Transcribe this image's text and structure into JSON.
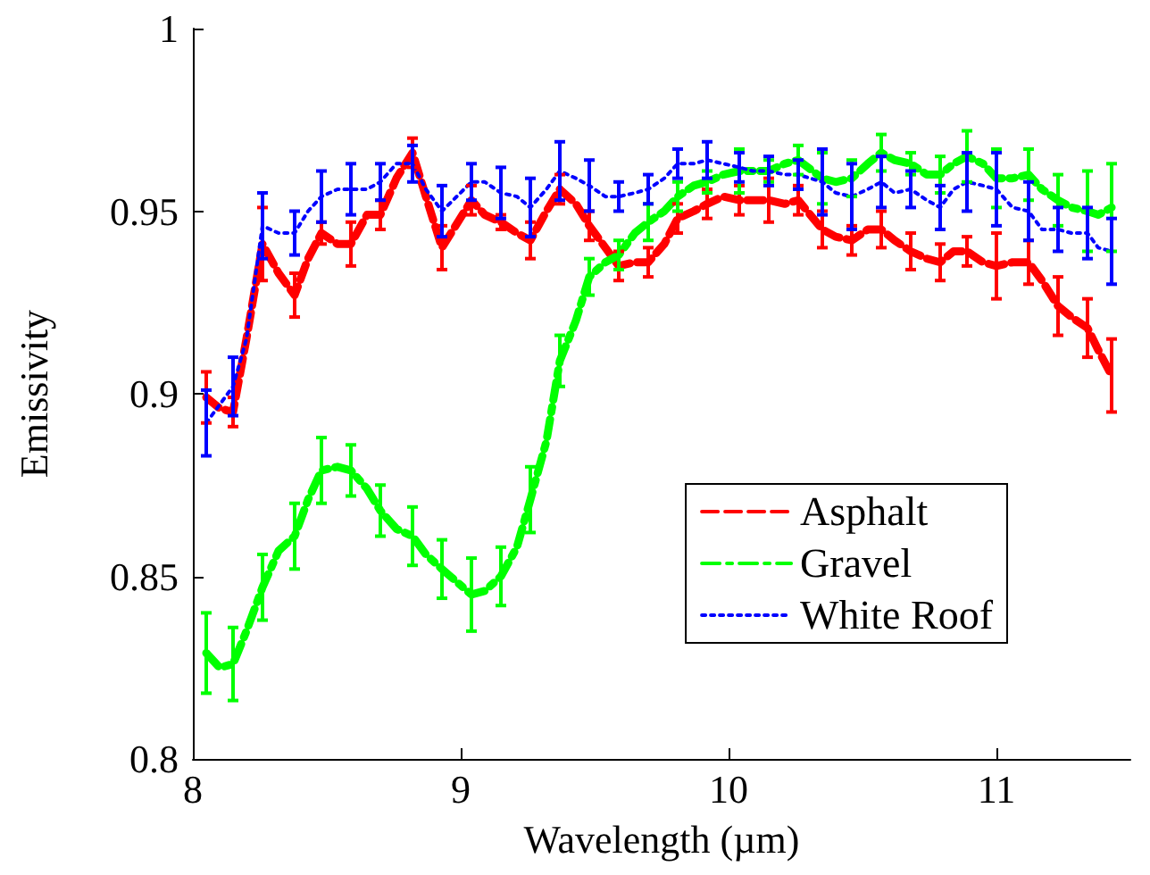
{
  "chart_data": {
    "type": "line",
    "xlabel": "Wavelength (µm)",
    "ylabel": "Emissivity",
    "x": [
      8.05,
      8.1,
      8.15,
      8.2,
      8.26,
      8.32,
      8.38,
      8.43,
      8.48,
      8.54,
      8.59,
      8.65,
      8.7,
      8.76,
      8.82,
      8.87,
      8.93,
      9.04,
      9.09,
      9.15,
      9.21,
      9.26,
      9.32,
      9.37,
      9.43,
      9.48,
      9.54,
      9.59,
      9.65,
      9.7,
      9.76,
      9.81,
      9.87,
      9.92,
      9.98,
      10.04,
      10.09,
      10.15,
      10.21,
      10.26,
      10.35,
      10.4,
      10.46,
      10.52,
      10.57,
      10.62,
      10.68,
      10.74,
      10.79,
      10.84,
      10.89,
      10.95,
      11.0,
      11.06,
      11.12,
      11.17,
      11.23,
      11.28,
      11.34,
      11.38,
      11.43
    ],
    "series": [
      {
        "name": "Asphalt",
        "color": "#ff0000",
        "line_style": "dashed",
        "values": [
          0.899,
          0.896,
          0.895,
          0.915,
          0.941,
          0.933,
          0.927,
          0.937,
          0.944,
          0.941,
          0.941,
          0.949,
          0.949,
          0.959,
          0.966,
          0.954,
          0.94,
          0.953,
          0.949,
          0.947,
          0.944,
          0.942,
          0.95,
          0.956,
          0.952,
          0.946,
          0.94,
          0.935,
          0.936,
          0.936,
          0.941,
          0.948,
          0.95,
          0.952,
          0.954,
          0.953,
          0.953,
          0.953,
          0.952,
          0.953,
          0.945,
          0.943,
          0.942,
          0.945,
          0.945,
          0.942,
          0.939,
          0.937,
          0.936,
          0.939,
          0.939,
          0.936,
          0.935,
          0.936,
          0.936,
          0.931,
          0.924,
          0.921,
          0.918,
          0.912,
          0.905
        ],
        "errors": [
          0.007,
          null,
          0.004,
          null,
          0.01,
          null,
          0.006,
          null,
          0.003,
          null,
          0.006,
          null,
          0.004,
          null,
          0.004,
          null,
          0.006,
          0.004,
          null,
          0.002,
          null,
          0.005,
          null,
          0.004,
          null,
          0.004,
          null,
          0.004,
          null,
          0.004,
          null,
          0.004,
          null,
          0.004,
          null,
          0.004,
          null,
          0.006,
          null,
          0.004,
          0.005,
          null,
          0.004,
          null,
          0.005,
          null,
          0.005,
          null,
          0.005,
          null,
          0.004,
          null,
          0.009,
          null,
          0.006,
          null,
          0.008,
          null,
          0.008,
          null,
          0.01
        ]
      },
      {
        "name": "Gravel",
        "color": "#00ff00",
        "line_style": "dashdot",
        "values": [
          0.829,
          0.825,
          0.826,
          0.835,
          0.847,
          0.857,
          0.861,
          0.871,
          0.879,
          0.88,
          0.879,
          0.874,
          0.868,
          0.863,
          0.861,
          0.856,
          0.852,
          0.845,
          0.846,
          0.85,
          0.858,
          0.871,
          0.887,
          0.909,
          0.92,
          0.932,
          0.936,
          0.938,
          0.944,
          0.947,
          0.95,
          0.954,
          0.957,
          0.958,
          0.96,
          0.961,
          0.961,
          0.961,
          0.963,
          0.964,
          0.959,
          0.958,
          0.959,
          0.963,
          0.966,
          0.964,
          0.963,
          0.96,
          0.96,
          0.963,
          0.965,
          0.963,
          0.959,
          0.959,
          0.96,
          0.956,
          0.953,
          0.951,
          0.95,
          0.949,
          0.951
        ],
        "errors": [
          0.011,
          null,
          0.01,
          null,
          0.009,
          null,
          0.009,
          null,
          0.009,
          null,
          0.007,
          null,
          0.007,
          null,
          0.008,
          null,
          0.008,
          0.01,
          null,
          0.008,
          null,
          0.009,
          null,
          0.007,
          null,
          0.005,
          null,
          0.004,
          null,
          0.005,
          null,
          0.004,
          null,
          0.003,
          null,
          0.006,
          null,
          0.003,
          null,
          0.004,
          0.007,
          null,
          0.005,
          null,
          0.005,
          null,
          0.003,
          null,
          0.005,
          null,
          0.007,
          null,
          0.008,
          null,
          0.007,
          null,
          0.007,
          null,
          0.011,
          null,
          0.012
        ]
      },
      {
        "name": "White Roof",
        "color": "#0000ff",
        "line_style": "dotted",
        "values": [
          0.892,
          0.897,
          0.902,
          0.915,
          0.946,
          0.944,
          0.944,
          0.95,
          0.954,
          0.956,
          0.956,
          0.956,
          0.958,
          0.963,
          0.963,
          0.956,
          0.95,
          0.958,
          0.958,
          0.955,
          0.954,
          0.951,
          0.956,
          0.961,
          0.959,
          0.957,
          0.954,
          0.954,
          0.955,
          0.956,
          0.959,
          0.963,
          0.963,
          0.964,
          0.963,
          0.962,
          0.961,
          0.961,
          0.96,
          0.96,
          0.958,
          0.955,
          0.954,
          0.956,
          0.958,
          0.955,
          0.956,
          0.953,
          0.951,
          0.956,
          0.958,
          0.957,
          0.956,
          0.951,
          0.95,
          0.945,
          0.945,
          0.944,
          0.944,
          0.94,
          0.939
        ],
        "errors": [
          0.009,
          null,
          0.008,
          null,
          0.009,
          null,
          0.006,
          null,
          0.007,
          null,
          0.007,
          null,
          0.005,
          null,
          0.005,
          null,
          0.007,
          0.005,
          null,
          0.007,
          null,
          0.008,
          null,
          0.008,
          null,
          0.007,
          null,
          0.004,
          null,
          0.004,
          null,
          0.004,
          null,
          0.005,
          null,
          0.004,
          null,
          0.004,
          null,
          0.004,
          0.009,
          null,
          0.009,
          null,
          0.007,
          null,
          0.005,
          null,
          0.006,
          null,
          0.008,
          null,
          0.01,
          null,
          0.008,
          null,
          0.006,
          null,
          0.007,
          null,
          0.009
        ]
      }
    ],
    "xlim": [
      8,
      11.5
    ],
    "xticks": [
      8,
      9,
      10,
      11
    ],
    "ylim": [
      0.8,
      1
    ],
    "yticks": [
      0.8,
      0.85,
      0.9,
      0.95,
      1
    ],
    "marker": "none",
    "grid": false,
    "legend": "bottom right"
  }
}
